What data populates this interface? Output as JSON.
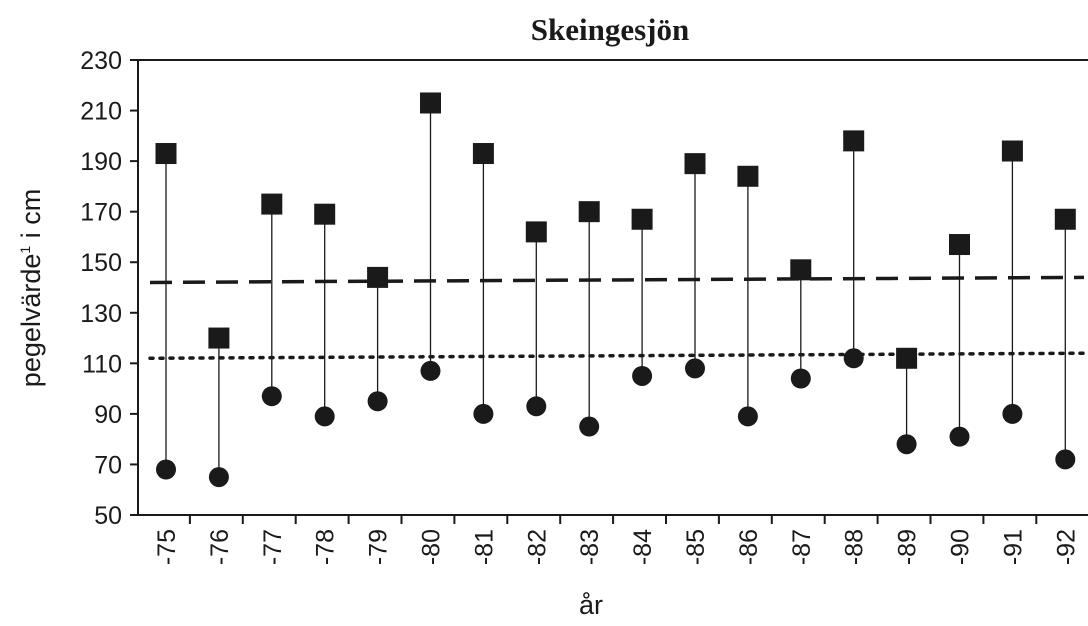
{
  "chart_data": {
    "type": "scatter",
    "title": "Skeingesjön",
    "xlabel": "år",
    "ylabel": "pegelvärde",
    "ylabel_sup": "1",
    "ylabel_suffix": " i cm",
    "ylim": [
      50,
      230
    ],
    "yticks": [
      50,
      70,
      90,
      110,
      130,
      150,
      170,
      190,
      210,
      230
    ],
    "categories": [
      "-75",
      "-76",
      "-77",
      "-78",
      "-79",
      "-80",
      "-81",
      "-82",
      "-83",
      "-84",
      "-85",
      "-86",
      "-87",
      "-88",
      "-89",
      "-90",
      "-91",
      "-92"
    ],
    "series": [
      {
        "marker": "square",
        "values": [
          193,
          120,
          173,
          169,
          144,
          213,
          193,
          162,
          170,
          167,
          189,
          184,
          147,
          198,
          112,
          157,
          194,
          167
        ]
      },
      {
        "marker": "circle",
        "values": [
          68,
          65,
          97,
          89,
          95,
          107,
          90,
          93,
          85,
          105,
          108,
          89,
          104,
          112,
          78,
          81,
          90,
          72
        ]
      }
    ],
    "reference_lines": [
      {
        "style": "dashed",
        "from": 142,
        "to": 144
      },
      {
        "style": "dotted",
        "from": 112,
        "to": 114
      }
    ],
    "grid": false,
    "colors": {
      "ink": "#1a1a1a",
      "background": "#ffffff"
    }
  }
}
